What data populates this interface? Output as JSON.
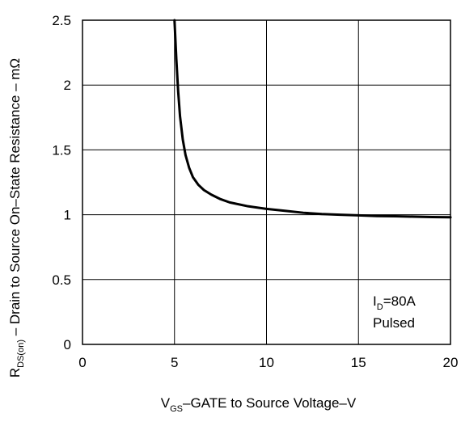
{
  "chart_data": {
    "type": "line",
    "title": "",
    "xlabel": {
      "main": "V",
      "sub": "GS",
      "rest": "–GATE to Source Voltage–V"
    },
    "ylabel": {
      "main": "R",
      "sub": "DS(on)",
      "rest": " – Drain to Source On–State Resistance – mΩ"
    },
    "xlim": [
      0,
      20
    ],
    "ylim": [
      0,
      2.5
    ],
    "x_ticks": [
      0,
      5,
      10,
      15,
      20
    ],
    "x_tick_labels": [
      "0",
      "5",
      "10",
      "15",
      "20"
    ],
    "y_ticks": [
      0,
      0.5,
      1,
      1.5,
      2,
      2.5
    ],
    "y_tick_labels": [
      "0",
      "0.5",
      "1",
      "1.5",
      "2",
      "2.5"
    ],
    "grid": true,
    "annotation": {
      "line1_main": "I",
      "line1_sub": "D",
      "line1_rest": "=80A",
      "line2": "Pulsed",
      "placement": "bottom-right"
    },
    "series": [
      {
        "color": "#000000",
        "points": [
          [
            5.0,
            2.5
          ],
          [
            5.1,
            2.2
          ],
          [
            5.2,
            1.95
          ],
          [
            5.3,
            1.76
          ],
          [
            5.45,
            1.58
          ],
          [
            5.6,
            1.46
          ],
          [
            5.8,
            1.36
          ],
          [
            6.0,
            1.29
          ],
          [
            6.3,
            1.23
          ],
          [
            6.6,
            1.19
          ],
          [
            7.0,
            1.155
          ],
          [
            7.5,
            1.12
          ],
          [
            8.0,
            1.095
          ],
          [
            9.0,
            1.065
          ],
          [
            10.0,
            1.045
          ],
          [
            11.0,
            1.03
          ],
          [
            12.0,
            1.015
          ],
          [
            13.0,
            1.005
          ],
          [
            14.0,
            1.0
          ],
          [
            15.0,
            0.995
          ],
          [
            16.0,
            0.99
          ],
          [
            17.0,
            0.988
          ],
          [
            18.0,
            0.985
          ],
          [
            19.0,
            0.982
          ],
          [
            20.0,
            0.98
          ]
        ]
      }
    ]
  }
}
